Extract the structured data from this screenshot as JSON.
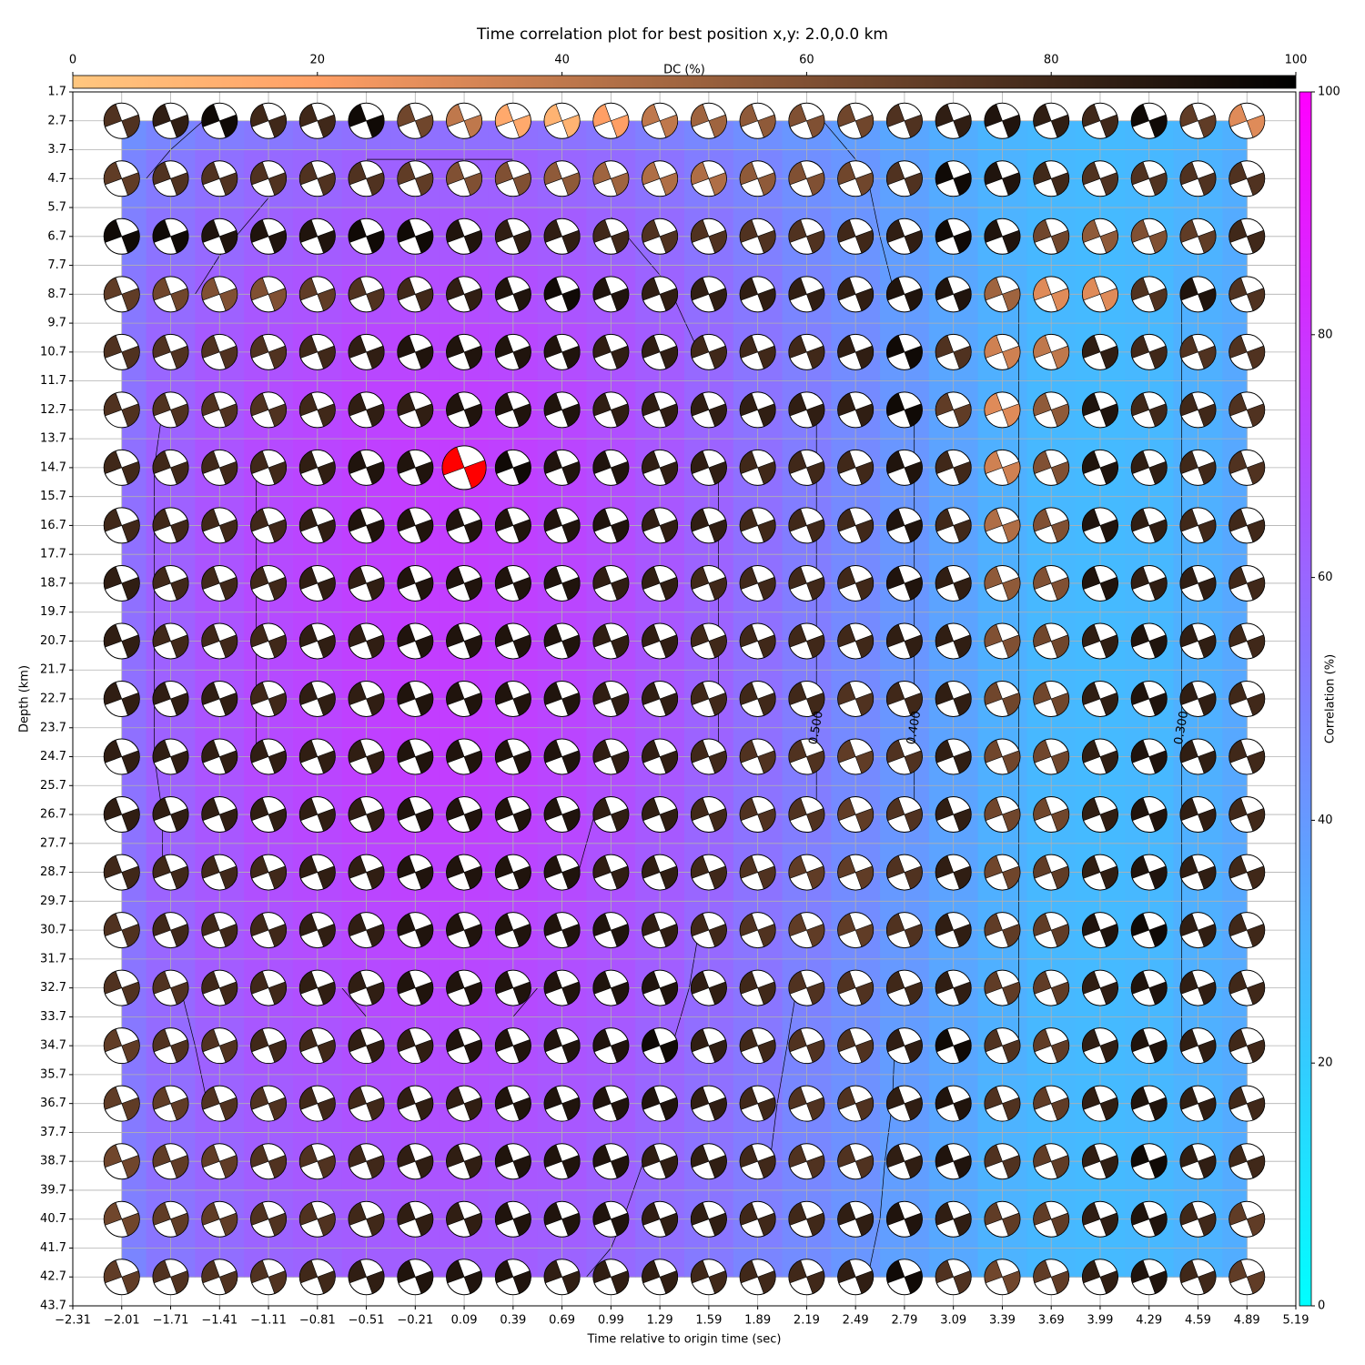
{
  "chart_data": {
    "type": "heatmap",
    "title": "Time correlation plot for best position x,y: 2.0,0.0 km",
    "xlabel": "Time relative to origin time (sec)",
    "ylabel": "Depth (km)",
    "dc_label": "DC (%)",
    "corr_label": "Correlation (%)",
    "xlim": [
      -2.31,
      5.19
    ],
    "ylim": [
      43.7,
      1.7
    ],
    "xticks": [
      {
        "value": -2.31,
        "label": "−2.31"
      },
      {
        "value": -2.01,
        "label": "−2.01"
      },
      {
        "value": -1.71,
        "label": "−1.71"
      },
      {
        "value": -1.41,
        "label": "−1.41"
      },
      {
        "value": -1.11,
        "label": "−1.11"
      },
      {
        "value": -0.81,
        "label": "−0.81"
      },
      {
        "value": -0.51,
        "label": "−0.51"
      },
      {
        "value": -0.21,
        "label": "−0.21"
      },
      0.09,
      0.39,
      0.69,
      0.99,
      1.29,
      1.59,
      1.89,
      2.19,
      2.49,
      2.79,
      3.09,
      3.39,
      3.69,
      3.99,
      4.29,
      4.59,
      4.89,
      5.19
    ],
    "yticks": [
      1.7,
      2.7,
      3.7,
      4.7,
      5.7,
      6.7,
      7.7,
      8.7,
      9.7,
      10.7,
      11.7,
      12.7,
      13.7,
      14.7,
      15.7,
      16.7,
      17.7,
      18.7,
      19.7,
      20.7,
      21.7,
      22.7,
      23.7,
      24.7,
      25.7,
      26.7,
      27.7,
      28.7,
      29.7,
      30.7,
      31.7,
      32.7,
      33.7,
      34.7,
      35.7,
      36.7,
      37.7,
      38.7,
      39.7,
      40.7,
      41.7,
      42.7,
      43.7
    ],
    "grid": true,
    "dc_lim": [
      0,
      100
    ],
    "dc_ticks": [
      0,
      20,
      40,
      60,
      80,
      100
    ],
    "corr_lim": [
      0,
      100
    ],
    "corr_ticks": [
      0,
      20,
      40,
      60,
      80,
      100
    ],
    "best": {
      "x": 0.09,
      "y": 14.7,
      "color": "#ff0000"
    },
    "contour_levels": [
      0.3,
      0.4,
      0.5,
      0.6,
      0.7
    ],
    "contour_labels": [
      {
        "value": 0.4,
        "label": "0.400"
      },
      {
        "value": 0.3,
        "label": "0.300"
      },
      {
        "value": 0.5,
        "label": "0.500"
      }
    ],
    "x": [
      -2.01,
      -1.71,
      -1.41,
      -1.11,
      -0.81,
      -0.51,
      -0.21,
      0.09,
      0.39,
      0.69,
      0.99,
      1.29,
      1.59,
      1.89,
      2.19,
      2.49,
      2.79,
      3.09,
      3.39,
      3.69,
      3.99,
      4.29,
      4.59,
      4.89
    ],
    "y": [
      2.7,
      4.7,
      6.7,
      8.7,
      10.7,
      12.7,
      14.7,
      16.7,
      18.7,
      20.7,
      22.7,
      24.7,
      26.7,
      28.7,
      30.7,
      32.7,
      34.7,
      36.7,
      38.7,
      40.7,
      42.7
    ],
    "correlation": [
      [
        44,
        48,
        51,
        53,
        55,
        56,
        56,
        56,
        56,
        55,
        53,
        50,
        47,
        44,
        41,
        38,
        35,
        32,
        29,
        28,
        27,
        28,
        29,
        31
      ],
      [
        48,
        52,
        56,
        59,
        60,
        62,
        62,
        62,
        62,
        60,
        58,
        55,
        51,
        48,
        44,
        41,
        37,
        33,
        30,
        28,
        27,
        28,
        30,
        32
      ],
      [
        50,
        55,
        59,
        62,
        64,
        65,
        66,
        66,
        65,
        64,
        61,
        58,
        54,
        50,
        46,
        42,
        38,
        34,
        30,
        28,
        27,
        28,
        30,
        33
      ],
      [
        53,
        58,
        62,
        66,
        67,
        69,
        70,
        70,
        69,
        67,
        65,
        61,
        57,
        53,
        48,
        44,
        39,
        35,
        31,
        28,
        27,
        28,
        31,
        33
      ],
      [
        54,
        60,
        65,
        68,
        70,
        72,
        73,
        73,
        72,
        70,
        67,
        64,
        59,
        54,
        50,
        45,
        40,
        35,
        31,
        28,
        27,
        28,
        31,
        34
      ],
      [
        55,
        61,
        66,
        70,
        72,
        74,
        75,
        75,
        74,
        72,
        69,
        65,
        60,
        55,
        51,
        46,
        41,
        36,
        31,
        28,
        27,
        28,
        31,
        34
      ],
      [
        56,
        62,
        67,
        71,
        73,
        75,
        76,
        76,
        75,
        73,
        70,
        66,
        61,
        56,
        51,
        46,
        41,
        36,
        31,
        28,
        27,
        28,
        31,
        34
      ],
      [
        56,
        62,
        67,
        71,
        73,
        75,
        76,
        76,
        75,
        73,
        70,
        66,
        61,
        56,
        51,
        46,
        41,
        36,
        31,
        28,
        27,
        28,
        31,
        34
      ],
      [
        56,
        62,
        67,
        71,
        73,
        75,
        76,
        76,
        75,
        73,
        70,
        66,
        61,
        56,
        51,
        46,
        41,
        36,
        31,
        28,
        27,
        28,
        31,
        34
      ],
      [
        56,
        62,
        67,
        71,
        73,
        75,
        76,
        76,
        75,
        73,
        70,
        66,
        61,
        56,
        51,
        46,
        41,
        36,
        31,
        28,
        27,
        28,
        31,
        34
      ],
      [
        56,
        62,
        67,
        71,
        73,
        75,
        76,
        76,
        75,
        73,
        70,
        66,
        61,
        56,
        51,
        46,
        41,
        36,
        31,
        28,
        27,
        28,
        31,
        34
      ],
      [
        56,
        62,
        67,
        71,
        73,
        75,
        76,
        76,
        75,
        73,
        70,
        66,
        61,
        56,
        51,
        46,
        41,
        36,
        31,
        28,
        27,
        28,
        31,
        34
      ],
      [
        55,
        61,
        66,
        70,
        72,
        74,
        75,
        75,
        74,
        72,
        69,
        65,
        60,
        55,
        51,
        46,
        41,
        36,
        31,
        28,
        27,
        28,
        31,
        34
      ],
      [
        55,
        61,
        65,
        69,
        71,
        73,
        74,
        74,
        73,
        71,
        68,
        64,
        60,
        55,
        50,
        45,
        40,
        36,
        31,
        28,
        27,
        28,
        31,
        34
      ],
      [
        54,
        60,
        65,
        68,
        70,
        72,
        73,
        73,
        72,
        70,
        67,
        64,
        59,
        54,
        50,
        45,
        40,
        35,
        31,
        28,
        27,
        28,
        31,
        34
      ],
      [
        54,
        59,
        64,
        67,
        69,
        71,
        72,
        72,
        71,
        69,
        67,
        63,
        58,
        54,
        49,
        44,
        40,
        35,
        31,
        28,
        27,
        28,
        31,
        33
      ],
      [
        53,
        58,
        62,
        66,
        67,
        69,
        70,
        70,
        69,
        67,
        65,
        61,
        57,
        53,
        48,
        44,
        39,
        35,
        31,
        28,
        27,
        28,
        31,
        33
      ],
      [
        52,
        57,
        61,
        64,
        66,
        68,
        69,
        69,
        68,
        66,
        64,
        60,
        56,
        52,
        47,
        43,
        39,
        35,
        30,
        28,
        27,
        28,
        30,
        33
      ],
      [
        51,
        56,
        60,
        63,
        65,
        66,
        67,
        67,
        66,
        65,
        62,
        59,
        55,
        51,
        47,
        43,
        38,
        34,
        30,
        28,
        27,
        28,
        30,
        33
      ],
      [
        50,
        54,
        58,
        61,
        63,
        64,
        65,
        65,
        64,
        63,
        61,
        57,
        54,
        50,
        46,
        42,
        38,
        34,
        30,
        28,
        27,
        28,
        30,
        32
      ],
      [
        48,
        53,
        57,
        60,
        61,
        63,
        63,
        63,
        63,
        61,
        59,
        56,
        52,
        48,
        45,
        41,
        37,
        34,
        30,
        28,
        27,
        28,
        30,
        32
      ]
    ],
    "dc": [
      [
        75,
        85,
        95,
        80,
        80,
        95,
        65,
        40,
        15,
        10,
        20,
        40,
        50,
        55,
        60,
        65,
        75,
        85,
        90,
        85,
        80,
        95,
        70,
        30
      ],
      [
        70,
        75,
        75,
        75,
        75,
        75,
        70,
        60,
        60,
        55,
        50,
        45,
        45,
        55,
        60,
        65,
        75,
        95,
        90,
        80,
        75,
        75,
        75,
        75
      ],
      [
        95,
        95,
        90,
        90,
        90,
        95,
        95,
        90,
        85,
        85,
        80,
        75,
        75,
        75,
        75,
        80,
        85,
        95,
        90,
        65,
        55,
        60,
        70,
        80
      ],
      [
        70,
        65,
        60,
        60,
        70,
        75,
        80,
        85,
        90,
        95,
        90,
        85,
        85,
        85,
        85,
        85,
        90,
        90,
        50,
        30,
        30,
        75,
        90,
        75
      ],
      [
        75,
        75,
        75,
        75,
        80,
        85,
        90,
        90,
        90,
        90,
        85,
        85,
        80,
        80,
        80,
        85,
        95,
        75,
        35,
        40,
        85,
        80,
        75,
        75
      ],
      [
        75,
        75,
        75,
        75,
        80,
        85,
        85,
        90,
        90,
        90,
        85,
        85,
        85,
        85,
        85,
        85,
        95,
        70,
        30,
        55,
        90,
        80,
        80,
        75
      ],
      [
        80,
        80,
        80,
        80,
        85,
        90,
        90,
        90,
        95,
        90,
        90,
        85,
        85,
        80,
        80,
        80,
        90,
        80,
        35,
        60,
        90,
        85,
        80,
        75
      ],
      [
        80,
        80,
        80,
        80,
        85,
        90,
        90,
        90,
        90,
        90,
        90,
        85,
        85,
        80,
        80,
        80,
        90,
        80,
        45,
        60,
        90,
        85,
        80,
        80
      ],
      [
        85,
        80,
        80,
        80,
        85,
        85,
        90,
        90,
        90,
        90,
        85,
        85,
        80,
        80,
        80,
        80,
        90,
        85,
        55,
        60,
        90,
        85,
        85,
        80
      ],
      [
        85,
        80,
        80,
        80,
        85,
        85,
        90,
        90,
        90,
        90,
        85,
        85,
        80,
        80,
        80,
        80,
        85,
        85,
        60,
        65,
        85,
        90,
        85,
        80
      ],
      [
        85,
        85,
        85,
        80,
        85,
        85,
        90,
        90,
        90,
        90,
        85,
        85,
        80,
        80,
        80,
        75,
        80,
        85,
        65,
        65,
        85,
        90,
        85,
        80
      ],
      [
        85,
        85,
        85,
        85,
        85,
        85,
        90,
        90,
        90,
        90,
        85,
        85,
        80,
        75,
        75,
        70,
        75,
        85,
        65,
        65,
        85,
        90,
        85,
        80
      ],
      [
        85,
        85,
        85,
        85,
        85,
        85,
        90,
        90,
        90,
        90,
        85,
        85,
        80,
        75,
        75,
        70,
        75,
        85,
        65,
        65,
        85,
        90,
        85,
        80
      ],
      [
        80,
        80,
        80,
        80,
        85,
        85,
        90,
        90,
        90,
        90,
        85,
        85,
        80,
        75,
        70,
        70,
        75,
        85,
        65,
        70,
        85,
        90,
        85,
        80
      ],
      [
        75,
        80,
        80,
        80,
        85,
        85,
        90,
        90,
        90,
        90,
        90,
        85,
        80,
        75,
        70,
        70,
        75,
        85,
        70,
        70,
        90,
        95,
        85,
        80
      ],
      [
        75,
        75,
        80,
        80,
        85,
        85,
        90,
        90,
        90,
        90,
        90,
        90,
        85,
        80,
        75,
        75,
        80,
        85,
        70,
        70,
        85,
        90,
        85,
        80
      ],
      [
        70,
        75,
        75,
        80,
        80,
        85,
        85,
        90,
        90,
        90,
        90,
        95,
        85,
        80,
        75,
        75,
        85,
        95,
        75,
        70,
        85,
        90,
        85,
        80
      ],
      [
        70,
        70,
        75,
        75,
        80,
        80,
        85,
        85,
        90,
        90,
        90,
        90,
        85,
        80,
        75,
        75,
        85,
        90,
        75,
        70,
        85,
        90,
        85,
        80
      ],
      [
        65,
        70,
        70,
        75,
        75,
        80,
        85,
        85,
        90,
        90,
        90,
        85,
        85,
        80,
        75,
        75,
        85,
        90,
        75,
        70,
        85,
        95,
        85,
        80
      ],
      [
        65,
        70,
        70,
        75,
        75,
        80,
        85,
        85,
        90,
        90,
        90,
        85,
        85,
        80,
        80,
        85,
        90,
        85,
        70,
        70,
        85,
        90,
        80,
        70
      ],
      [
        70,
        75,
        75,
        75,
        80,
        85,
        90,
        90,
        90,
        85,
        85,
        85,
        80,
        80,
        80,
        85,
        95,
        75,
        65,
        70,
        85,
        90,
        80,
        70
      ]
    ]
  }
}
